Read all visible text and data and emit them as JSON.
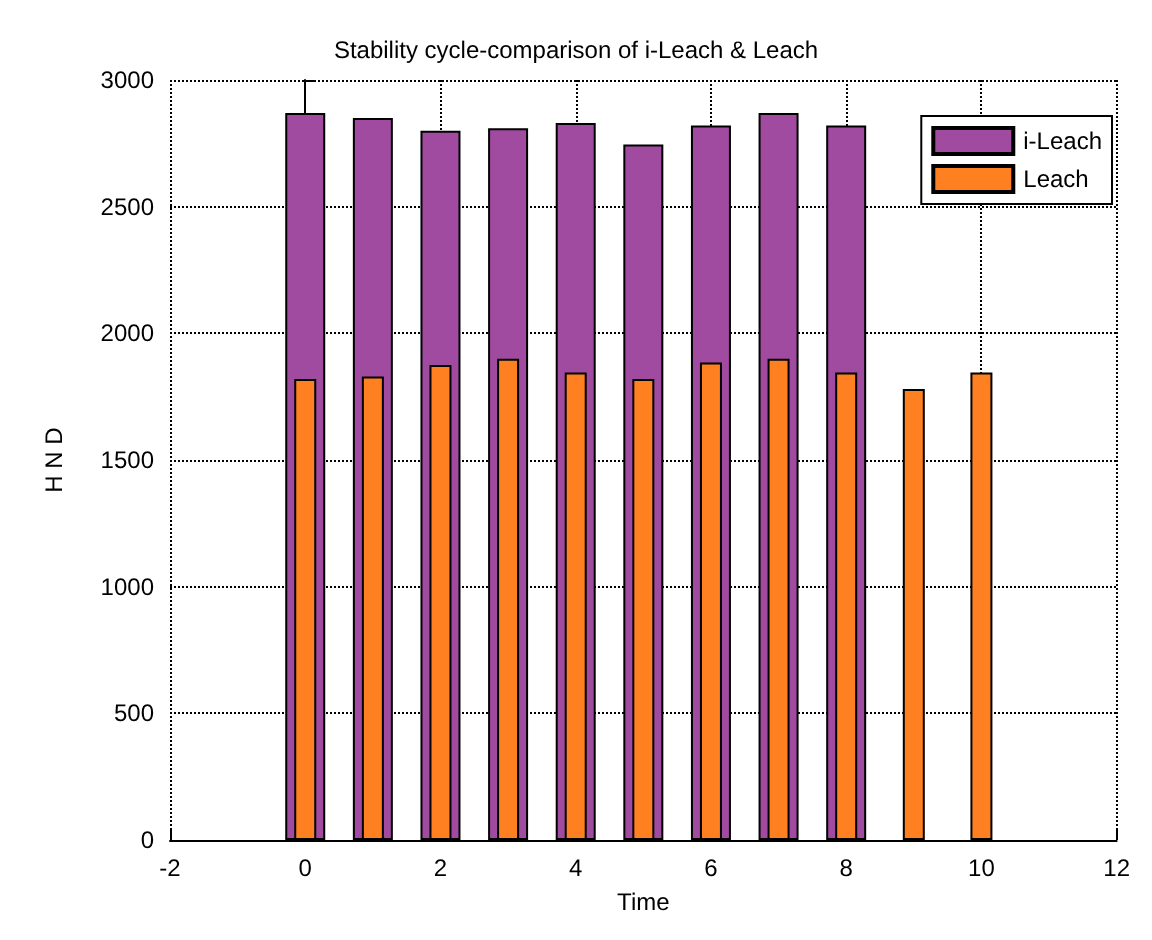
{
  "chart_data": {
    "type": "bar",
    "title": "Stability cycle-comparison of i-Leach & Leach",
    "xlabel": "Time",
    "ylabel": "H N D",
    "x": [
      0,
      1,
      2,
      3,
      4,
      5,
      6,
      7,
      8,
      9,
      10
    ],
    "series": [
      {
        "name": "i-Leach",
        "color": "#a04aa0",
        "values": [
          2870,
          2850,
          2800,
          2810,
          2830,
          2745,
          2820,
          2870,
          2820,
          null,
          null
        ]
      },
      {
        "name": "Leach",
        "color": "#ff8020",
        "values": [
          1820,
          1830,
          1875,
          1900,
          1845,
          1820,
          1885,
          1900,
          1845,
          1780,
          1845
        ]
      }
    ],
    "xlim": [
      -2,
      12
    ],
    "xticks": [
      -2,
      0,
      2,
      4,
      6,
      8,
      10,
      12
    ],
    "ylim": [
      0,
      3000
    ],
    "yticks": [
      0,
      500,
      1000,
      1500,
      2000,
      2500,
      3000
    ],
    "grid": true,
    "legend": "top right"
  }
}
